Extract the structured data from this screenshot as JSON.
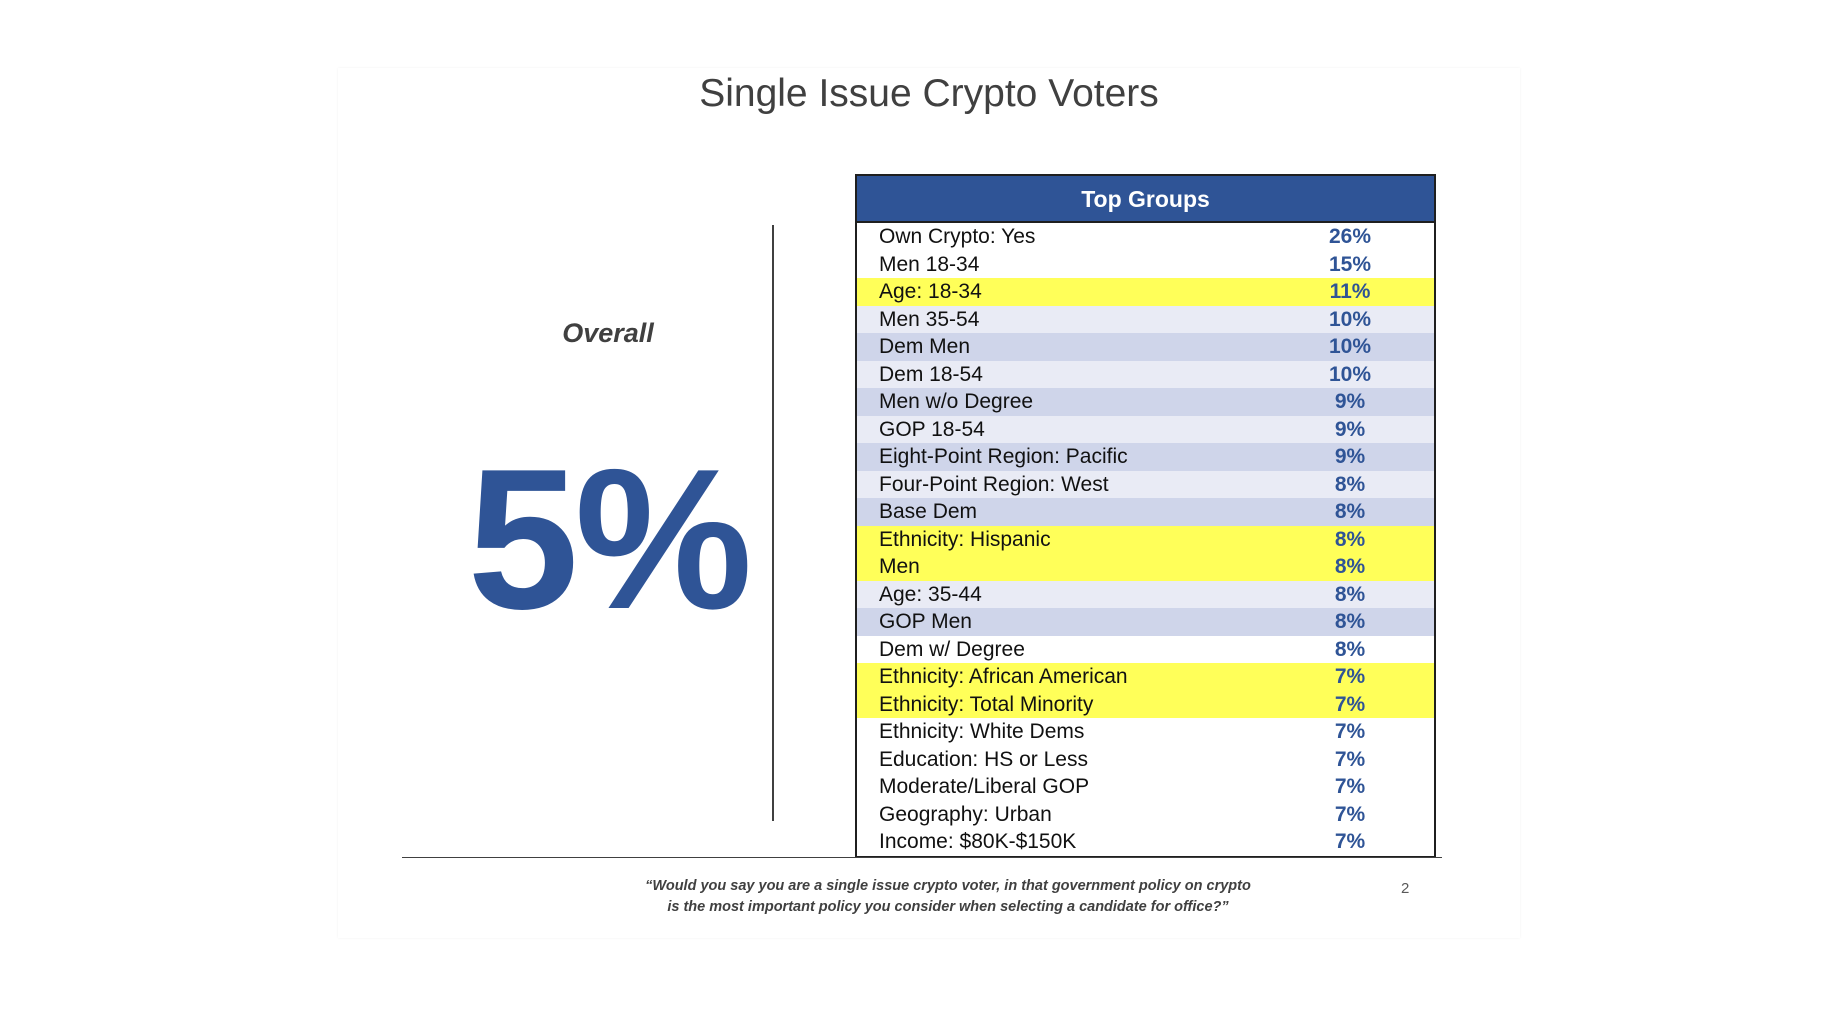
{
  "title": "Single Issue Crypto Voters",
  "overall": {
    "label": "Overall",
    "value": "5%"
  },
  "table": {
    "header": "Top Groups",
    "colors": {
      "header_bg": "#2f5496",
      "highlight": "#ffff59",
      "band_dark": "#cfd5ea",
      "band_light": "#e9ebf5",
      "white": "#ffffff"
    },
    "rows": [
      {
        "label": "Own Crypto: Yes",
        "value": "26%",
        "bg": "white"
      },
      {
        "label": "Men 18-34",
        "value": "15%",
        "bg": "white"
      },
      {
        "label": "Age: 18-34",
        "value": "11%",
        "bg": "highlight"
      },
      {
        "label": "Men 35-54",
        "value": "10%",
        "bg": "band_light"
      },
      {
        "label": "Dem Men",
        "value": "10%",
        "bg": "band_dark"
      },
      {
        "label": "Dem 18-54",
        "value": "10%",
        "bg": "band_light"
      },
      {
        "label": "Men w/o Degree",
        "value": "9%",
        "bg": "band_dark"
      },
      {
        "label": "GOP 18-54",
        "value": "9%",
        "bg": "band_light"
      },
      {
        "label": "Eight-Point Region: Pacific",
        "value": "9%",
        "bg": "band_dark"
      },
      {
        "label": "Four-Point Region: West",
        "value": "8%",
        "bg": "band_light"
      },
      {
        "label": "Base Dem",
        "value": "8%",
        "bg": "band_dark"
      },
      {
        "label": "Ethnicity: Hispanic",
        "value": "8%",
        "bg": "highlight"
      },
      {
        "label": "Men",
        "value": "8%",
        "bg": "highlight"
      },
      {
        "label": "Age: 35-44",
        "value": "8%",
        "bg": "band_light"
      },
      {
        "label": "GOP Men",
        "value": "8%",
        "bg": "band_dark"
      },
      {
        "label": "Dem w/ Degree",
        "value": "8%",
        "bg": "white"
      },
      {
        "label": "Ethnicity: African American",
        "value": "7%",
        "bg": "highlight"
      },
      {
        "label": "Ethnicity: Total Minority",
        "value": "7%",
        "bg": "highlight"
      },
      {
        "label": "Ethnicity: White Dems",
        "value": "7%",
        "bg": "white"
      },
      {
        "label": "Education: HS or Less",
        "value": "7%",
        "bg": "white"
      },
      {
        "label": "Moderate/Liberal GOP",
        "value": "7%",
        "bg": "white"
      },
      {
        "label": "Geography: Urban",
        "value": "7%",
        "bg": "white"
      },
      {
        "label": "Income: $80K-$150K",
        "value": "7%",
        "bg": "white"
      }
    ]
  },
  "footnote": {
    "line1": "“Would you say you are a single issue crypto voter, in that government policy on crypto",
    "line2": "is the most important policy you consider when selecting a candidate for office?”"
  },
  "page_number": "2"
}
